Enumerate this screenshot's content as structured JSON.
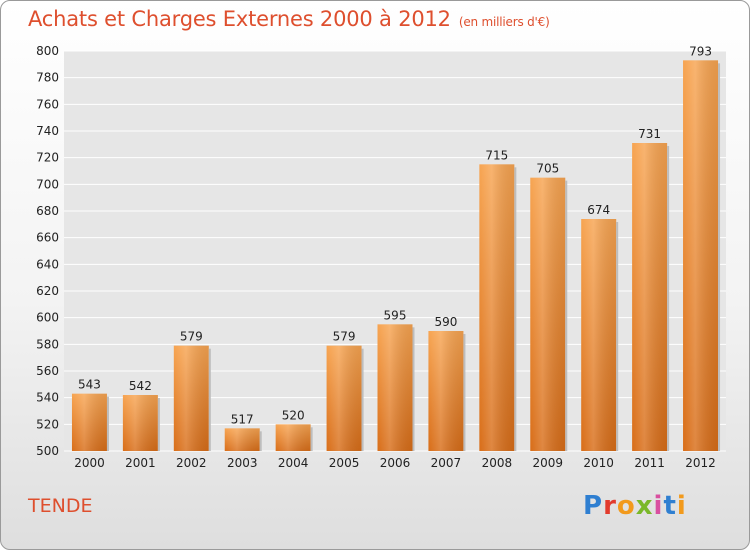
{
  "title": "Achats et Charges Externes 2000 à 2012",
  "title_unit": "(en milliers d'€)",
  "location": "TENDE",
  "logo_text": "Proxiti",
  "colors": {
    "title": "#de4f2e",
    "bar_top": "#f7a451",
    "bar_bottom": "#d86d18",
    "axis_text": "#222222"
  },
  "chart_data": {
    "type": "bar",
    "categories": [
      "2000",
      "2001",
      "2002",
      "2003",
      "2004",
      "2005",
      "2006",
      "2007",
      "2008",
      "2009",
      "2010",
      "2011",
      "2012"
    ],
    "values": [
      543,
      542,
      579,
      517,
      520,
      579,
      595,
      590,
      715,
      705,
      674,
      731,
      793
    ],
    "ylim": [
      500,
      800
    ],
    "yticks": [
      500,
      520,
      540,
      560,
      580,
      600,
      620,
      640,
      660,
      680,
      700,
      720,
      740,
      760,
      780,
      800
    ],
    "grid": true,
    "data_labels": true
  }
}
